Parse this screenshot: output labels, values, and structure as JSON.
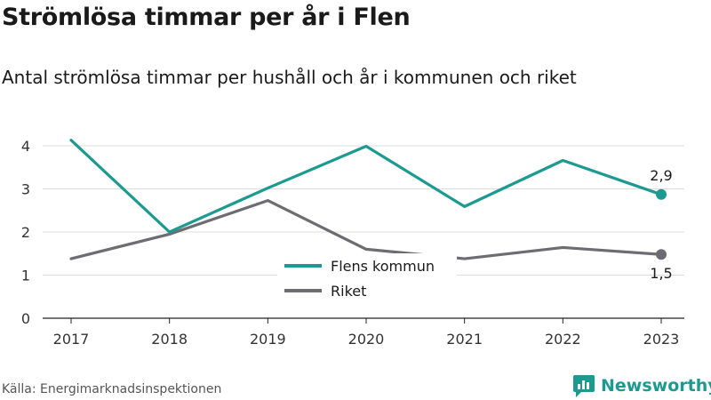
{
  "title": "Strömlösa timmar per år i Flen",
  "subtitle": "Antal strömlösa timmar per hushåll och år i kommunen och riket",
  "source": "Källa: Energimarknadsinspektionen",
  "brand": {
    "name": "Newsworthy",
    "color": "#1d9a90",
    "icon": "newsworthy-logo-icon"
  },
  "chart_data": {
    "type": "line",
    "x": [
      "2017",
      "2018",
      "2019",
      "2020",
      "2021",
      "2022",
      "2023"
    ],
    "ylim": [
      0,
      4.5
    ],
    "yticks": [
      "0",
      "1",
      "2",
      "3",
      "4"
    ],
    "grid": true,
    "legend_position": "bottom-center",
    "series": [
      {
        "name": "Flens kommun",
        "color": "#1d9a90",
        "values": [
          4.13,
          2.0,
          3.02,
          3.99,
          2.59,
          3.66,
          2.87
        ],
        "end_label": "2,9"
      },
      {
        "name": "Riket",
        "color": "#6d6c72",
        "values": [
          1.38,
          1.95,
          2.73,
          1.6,
          1.38,
          1.64,
          1.48
        ],
        "end_label": "1,5"
      }
    ]
  }
}
